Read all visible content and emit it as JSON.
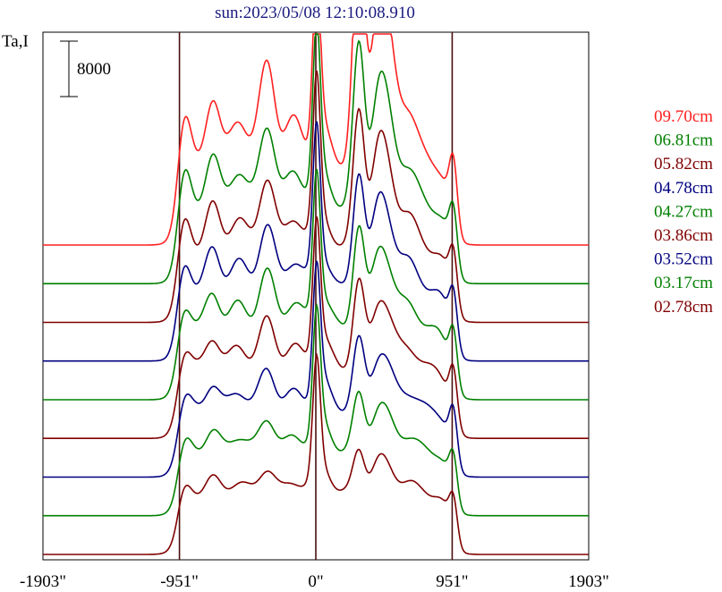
{
  "chart_data": {
    "type": "line",
    "title": "sun:2023/05/08 12:10:08.910",
    "ylabel": "Ta,I",
    "scale_bar_label": "8000",
    "x_ticks": [
      {
        "value": -1903,
        "label": "-1903\""
      },
      {
        "value": -951,
        "label": "-951\""
      },
      {
        "value": 0,
        "label": "0\""
      },
      {
        "value": 951,
        "label": "951\""
      },
      {
        "value": 1903,
        "label": "1903\""
      }
    ],
    "xlim": [
      -1903,
      1903
    ],
    "vertical_lines": [
      -951,
      0,
      951
    ],
    "grid": false,
    "legend_position": "right",
    "series": [
      {
        "name": "09.70cm",
        "color": "#ff2020",
        "baseline": 0.8,
        "peak": 0.95,
        "west": 0.32,
        "east": 0.55,
        "limb": 0.13,
        "hump": 0.26
      },
      {
        "name": "06.81cm",
        "color": "#008000",
        "baseline": 0.77,
        "peak": 0.92,
        "west": 0.32,
        "east": 0.42,
        "limb": 0.12,
        "hump": 0.22
      },
      {
        "name": "05.82cm",
        "color": "#800000",
        "baseline": 0.77,
        "peak": 0.88,
        "west": 0.32,
        "east": 0.38,
        "limb": 0.12,
        "hump": 0.2
      },
      {
        "name": "04.78cm",
        "color": "#000080",
        "baseline": 0.77,
        "peak": 0.85,
        "west": 0.31,
        "east": 0.32,
        "limb": 0.12,
        "hump": 0.18
      },
      {
        "name": "04.27cm",
        "color": "#008000",
        "baseline": 0.77,
        "peak": 0.83,
        "west": 0.3,
        "east": 0.28,
        "limb": 0.12,
        "hump": 0.16
      },
      {
        "name": "03.86cm",
        "color": "#800000",
        "baseline": 0.77,
        "peak": 0.8,
        "west": 0.29,
        "east": 0.24,
        "limb": 0.12,
        "hump": 0.14
      },
      {
        "name": "03.52cm",
        "color": "#000080",
        "baseline": 0.77,
        "peak": 0.77,
        "west": 0.29,
        "east": 0.2,
        "limb": 0.12,
        "hump": 0.12
      },
      {
        "name": "03.17cm",
        "color": "#008000",
        "baseline": 0.77,
        "peak": 0.74,
        "west": 0.29,
        "east": 0.17,
        "limb": 0.11,
        "hump": 0.1
      },
      {
        "name": "02.78cm",
        "color": "#800000",
        "baseline": 0.77,
        "peak": 0.7,
        "west": 0.29,
        "east": 0.14,
        "limb": 0.11,
        "hump": 0.08
      }
    ]
  }
}
